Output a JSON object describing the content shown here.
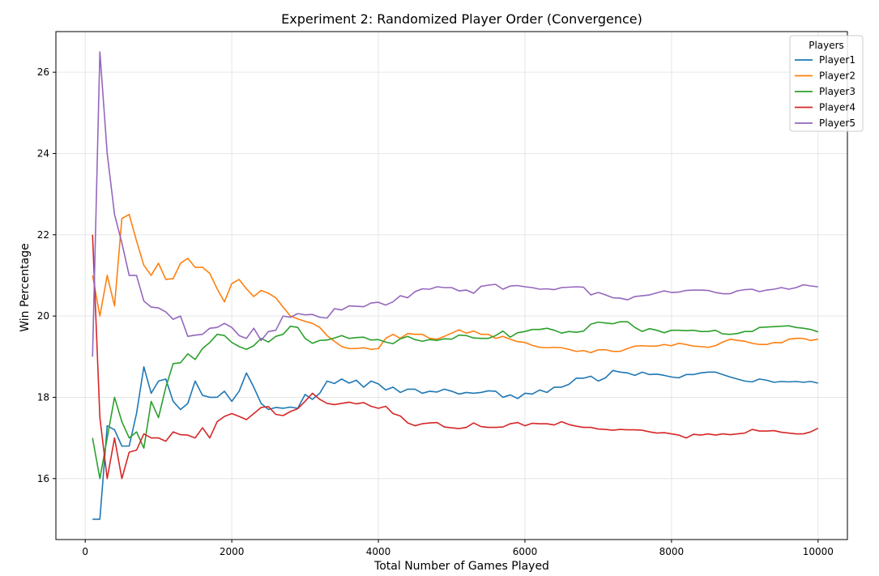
{
  "chart_data": {
    "type": "line",
    "title": "Experiment 2: Randomized Player Order (Convergence)",
    "xlabel": "Total Number of Games Played",
    "ylabel": "Win Percentage",
    "xlim": [
      -400,
      10400
    ],
    "ylim": [
      14.5,
      27.0
    ],
    "xticks": [
      0,
      2000,
      4000,
      6000,
      8000,
      10000
    ],
    "yticks": [
      16,
      18,
      20,
      22,
      24,
      26
    ],
    "grid": true,
    "legend": {
      "title": "Players",
      "placement": "top-right"
    },
    "x": [
      100,
      200,
      300,
      400,
      500,
      600,
      700,
      800,
      900,
      1000,
      1100,
      1200,
      1300,
      1400,
      1500,
      1600,
      1700,
      1800,
      1900,
      2000,
      2100,
      2200,
      2300,
      2400,
      2500,
      2600,
      2700,
      2800,
      2900,
      3000,
      3100,
      3200,
      3300,
      3400,
      3500,
      3600,
      3700,
      3800,
      3900,
      4000,
      4100,
      4200,
      4300,
      4400,
      4500,
      4600,
      4700,
      4800,
      4900,
      5000,
      5100,
      5200,
      5300,
      5400,
      5500,
      5600,
      5700,
      5800,
      5900,
      6000,
      6100,
      6200,
      6300,
      6400,
      6500,
      6600,
      6700,
      6800,
      6900,
      7000,
      7100,
      7200,
      7300,
      7400,
      7500,
      7600,
      7700,
      7800,
      7900,
      8000,
      8100,
      8200,
      8300,
      8400,
      8500,
      8600,
      8700,
      8800,
      8900,
      9000,
      9100,
      9200,
      9300,
      9400,
      9500,
      9600,
      9700,
      9800,
      9900,
      10000
    ],
    "series": [
      {
        "name": "Player1",
        "color": "#1f77b4",
        "values": [
          15.0,
          15.0,
          17.3,
          17.2,
          16.8,
          16.8,
          17.6,
          18.75,
          18.1,
          18.4,
          18.45,
          17.9,
          17.7,
          17.85,
          18.4,
          18.05,
          18.0,
          18.0,
          18.15,
          17.9,
          18.15,
          18.6,
          18.25,
          17.85,
          17.7,
          17.75,
          17.73,
          17.76,
          17.73,
          18.07,
          17.95,
          18.1,
          18.4,
          18.34,
          18.45,
          18.35,
          18.42,
          18.25,
          18.4,
          18.33,
          18.18,
          18.25,
          18.12,
          18.2,
          18.2,
          18.1,
          18.15,
          18.13,
          18.2,
          18.15,
          18.08,
          18.12,
          18.1,
          18.12,
          18.16,
          18.15,
          18.0,
          18.06,
          17.97,
          18.1,
          18.08,
          18.18,
          18.12,
          18.25,
          18.25,
          18.32,
          18.47,
          18.47,
          18.52,
          18.4,
          18.48,
          18.66,
          18.62,
          18.6,
          18.54,
          18.62,
          18.56,
          18.57,
          18.54,
          18.5,
          18.48,
          18.56,
          18.56,
          18.6,
          18.62,
          18.62,
          18.56,
          18.5,
          18.45,
          18.4,
          18.38,
          18.45,
          18.42,
          18.37,
          18.39,
          18.38,
          18.39,
          18.37,
          18.39,
          18.35
        ]
      },
      {
        "name": "Player2",
        "color": "#ff7f0e",
        "values": [
          21.0,
          20.0,
          21.0,
          20.25,
          22.4,
          22.5,
          21.85,
          21.25,
          21.0,
          21.3,
          20.9,
          20.92,
          21.3,
          21.42,
          21.2,
          21.2,
          21.05,
          20.67,
          20.35,
          20.8,
          20.9,
          20.67,
          20.48,
          20.63,
          20.56,
          20.45,
          20.22,
          20.0,
          19.93,
          19.87,
          19.82,
          19.72,
          19.52,
          19.38,
          19.25,
          19.2,
          19.2,
          19.22,
          19.18,
          19.2,
          19.45,
          19.55,
          19.45,
          19.57,
          19.55,
          19.55,
          19.45,
          19.43,
          19.5,
          19.58,
          19.66,
          19.58,
          19.63,
          19.55,
          19.55,
          19.45,
          19.5,
          19.43,
          19.37,
          19.35,
          19.28,
          19.23,
          19.22,
          19.23,
          19.22,
          19.18,
          19.13,
          19.15,
          19.1,
          19.17,
          19.17,
          19.13,
          19.13,
          19.2,
          19.26,
          19.27,
          19.26,
          19.26,
          19.3,
          19.27,
          19.33,
          19.3,
          19.26,
          19.25,
          19.23,
          19.27,
          19.36,
          19.43,
          19.4,
          19.38,
          19.33,
          19.3,
          19.3,
          19.35,
          19.34,
          19.43,
          19.45,
          19.45,
          19.4,
          19.43
        ]
      },
      {
        "name": "Player3",
        "color": "#2ca02c",
        "values": [
          17.0,
          16.0,
          17.0,
          18.0,
          17.4,
          17.0,
          17.15,
          16.75,
          17.9,
          17.5,
          18.25,
          18.83,
          18.85,
          19.07,
          18.93,
          19.2,
          19.35,
          19.55,
          19.52,
          19.35,
          19.25,
          19.18,
          19.27,
          19.45,
          19.36,
          19.5,
          19.55,
          19.75,
          19.72,
          19.45,
          19.33,
          19.4,
          19.41,
          19.46,
          19.52,
          19.45,
          19.47,
          19.48,
          19.41,
          19.42,
          19.36,
          19.32,
          19.44,
          19.5,
          19.42,
          19.38,
          19.42,
          19.4,
          19.44,
          19.43,
          19.53,
          19.52,
          19.46,
          19.45,
          19.45,
          19.52,
          19.63,
          19.48,
          19.59,
          19.62,
          19.67,
          19.67,
          19.7,
          19.65,
          19.58,
          19.62,
          19.6,
          19.63,
          19.8,
          19.85,
          19.83,
          19.81,
          19.86,
          19.86,
          19.72,
          19.62,
          19.69,
          19.65,
          19.59,
          19.65,
          19.65,
          19.64,
          19.65,
          19.62,
          19.62,
          19.65,
          19.56,
          19.55,
          19.57,
          19.62,
          19.62,
          19.72,
          19.73,
          19.74,
          19.75,
          19.76,
          19.72,
          19.7,
          19.67,
          19.61
        ]
      },
      {
        "name": "Player4",
        "color": "#d62728",
        "values": [
          22.0,
          17.5,
          16.0,
          17.0,
          16.0,
          16.65,
          16.7,
          17.1,
          17.0,
          17.0,
          16.92,
          17.15,
          17.08,
          17.07,
          17.0,
          17.25,
          17.0,
          17.4,
          17.53,
          17.6,
          17.53,
          17.45,
          17.6,
          17.75,
          17.77,
          17.58,
          17.55,
          17.65,
          17.72,
          17.9,
          18.1,
          17.95,
          17.85,
          17.82,
          17.85,
          17.88,
          17.84,
          17.87,
          17.78,
          17.73,
          17.78,
          17.6,
          17.54,
          17.37,
          17.3,
          17.35,
          17.37,
          17.38,
          17.27,
          17.25,
          17.23,
          17.26,
          17.37,
          17.28,
          17.26,
          17.26,
          17.27,
          17.35,
          17.38,
          17.3,
          17.36,
          17.35,
          17.35,
          17.32,
          17.4,
          17.33,
          17.29,
          17.26,
          17.26,
          17.22,
          17.21,
          17.19,
          17.21,
          17.2,
          17.2,
          17.19,
          17.15,
          17.12,
          17.13,
          17.1,
          17.07,
          17.0,
          17.09,
          17.07,
          17.1,
          17.07,
          17.1,
          17.08,
          17.1,
          17.12,
          17.21,
          17.17,
          17.17,
          17.18,
          17.14,
          17.12,
          17.1,
          17.1,
          17.15,
          17.24
        ]
      },
      {
        "name": "Player5",
        "color": "#9467bd",
        "values": [
          19.0,
          26.5,
          24.0,
          22.5,
          21.8,
          21.0,
          21.0,
          20.37,
          20.22,
          20.2,
          20.1,
          19.92,
          20.0,
          19.5,
          19.53,
          19.55,
          19.7,
          19.72,
          19.82,
          19.72,
          19.52,
          19.45,
          19.7,
          19.4,
          19.62,
          19.65,
          20.0,
          19.97,
          20.06,
          20.03,
          20.04,
          19.97,
          19.95,
          20.18,
          20.15,
          20.25,
          20.24,
          20.23,
          20.32,
          20.34,
          20.27,
          20.35,
          20.5,
          20.45,
          20.6,
          20.67,
          20.66,
          20.72,
          20.7,
          20.7,
          20.62,
          20.64,
          20.56,
          20.73,
          20.76,
          20.78,
          20.66,
          20.74,
          20.75,
          20.72,
          20.7,
          20.66,
          20.67,
          20.65,
          20.7,
          20.71,
          20.72,
          20.71,
          20.52,
          20.58,
          20.52,
          20.45,
          20.44,
          20.4,
          20.48,
          20.5,
          20.52,
          20.57,
          20.62,
          20.58,
          20.59,
          20.63,
          20.64,
          20.64,
          20.63,
          20.58,
          20.55,
          20.55,
          20.62,
          20.65,
          20.66,
          20.6,
          20.64,
          20.66,
          20.7,
          20.66,
          20.7,
          20.77,
          20.74,
          20.72
        ]
      }
    ]
  }
}
